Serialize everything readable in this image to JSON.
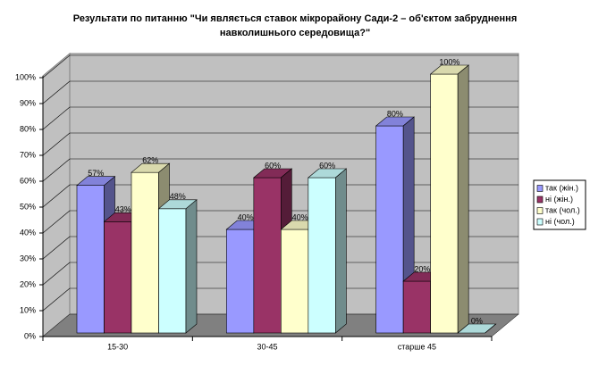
{
  "chart_data": {
    "type": "bar3d",
    "title": [
      "Результати по питанню \"Чи являється ставок мікрорайону Сади-2 – об'єктом забруднення",
      "навколишнього середовища?\""
    ],
    "categories": [
      "15-30",
      "30-45",
      "старше 45"
    ],
    "series": [
      {
        "name": "так (жін.)",
        "color": "#9999ff",
        "values": [
          57,
          40,
          80
        ],
        "value_labels": [
          "57%",
          "40%",
          "80%"
        ]
      },
      {
        "name": "ні (жін.)",
        "color": "#993366",
        "values": [
          43,
          60,
          20
        ],
        "value_labels": [
          "43%",
          "60%",
          "20%"
        ]
      },
      {
        "name": "так (чол.)",
        "color": "#ffffcc",
        "values": [
          62,
          40,
          100
        ],
        "value_labels": [
          "62%",
          "40%",
          "100%"
        ]
      },
      {
        "name": "ні (чол.)",
        "color": "#ccffff",
        "values": [
          48,
          60,
          0
        ],
        "value_labels": [
          "48%",
          "60%",
          "0%"
        ]
      }
    ],
    "ylim": [
      0,
      100
    ],
    "yticks": [
      {
        "value": 0,
        "label": "0%"
      },
      {
        "value": 10,
        "label": "10%"
      },
      {
        "value": 20,
        "label": "20%"
      },
      {
        "value": 30,
        "label": "30%"
      },
      {
        "value": 40,
        "label": "40%"
      },
      {
        "value": 50,
        "label": "50%"
      },
      {
        "value": 60,
        "label": "60%"
      },
      {
        "value": 70,
        "label": "70%"
      },
      {
        "value": 80,
        "label": "80%"
      },
      {
        "value": 90,
        "label": "90%"
      },
      {
        "value": 100,
        "label": "100%"
      }
    ],
    "grid": true,
    "legend": "right"
  }
}
